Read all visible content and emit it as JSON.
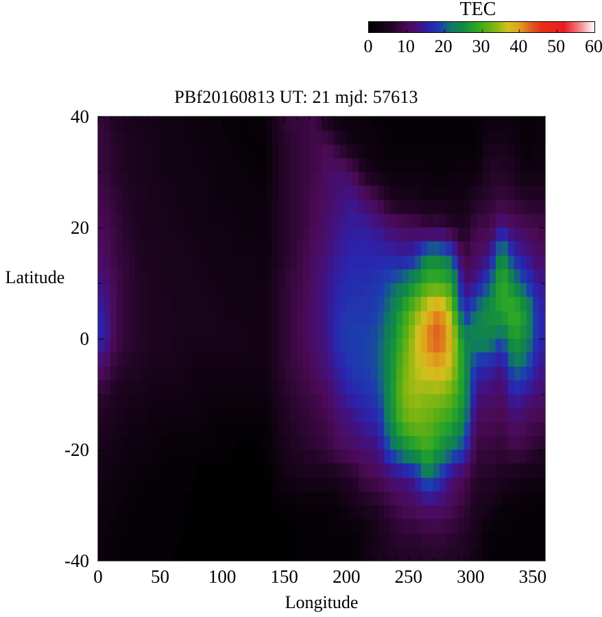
{
  "colorbar": {
    "title": "TEC",
    "min": 0,
    "max": 60,
    "tick_labels": [
      0,
      10,
      20,
      30,
      40,
      50,
      60
    ]
  },
  "plot": {
    "title": "PBf20160813  UT: 21  mjd: 57613",
    "x_axis": {
      "label": "Longitude",
      "tick_labels": [
        0,
        50,
        100,
        150,
        200,
        250,
        300,
        350
      ],
      "range": [
        0,
        360
      ],
      "major_step": 50,
      "minor_step": 10
    },
    "y_axis": {
      "label": "Latitude",
      "tick_labels": [
        40,
        20,
        0,
        -20,
        -40
      ],
      "range": [
        -40,
        40
      ],
      "major_step": 20,
      "minor_step": 10
    }
  },
  "chart_data": {
    "type": "heatmap",
    "title": "PBf20160813  UT: 21  mjd: 57613",
    "xlabel": "Longitude",
    "ylabel": "Latitude",
    "zlabel": "TEC",
    "xlim": [
      0,
      360
    ],
    "ylim": [
      -40,
      40
    ],
    "zlim": [
      0,
      60
    ],
    "grid": false,
    "colorbar_position": "top",
    "lon_centers": [
      5,
      15,
      25,
      35,
      45,
      55,
      65,
      75,
      85,
      95,
      105,
      115,
      125,
      135,
      145,
      155,
      165,
      175,
      185,
      195,
      205,
      215,
      225,
      235,
      245,
      255,
      265,
      275,
      285,
      295,
      305,
      315,
      325,
      335,
      345,
      355
    ],
    "lat_centers": [
      40,
      35,
      30,
      25,
      20,
      15,
      10,
      5,
      0,
      -5,
      -10,
      -15,
      -20,
      -25,
      -30,
      -35,
      -40
    ],
    "values": [
      [
        7,
        5,
        4,
        4,
        3,
        3,
        3,
        2,
        2,
        2,
        1,
        1,
        1,
        2,
        6,
        8,
        8,
        9,
        3,
        2,
        2,
        2,
        1,
        1,
        1,
        1,
        1,
        1,
        1,
        1,
        1,
        2,
        2,
        2,
        1,
        2
      ],
      [
        8,
        6,
        5,
        4,
        4,
        3,
        3,
        3,
        2,
        2,
        2,
        1,
        1,
        1,
        5,
        7,
        8,
        9,
        10,
        6,
        3,
        2,
        2,
        1,
        1,
        1,
        1,
        1,
        1,
        1,
        1,
        4,
        4,
        3,
        1,
        2
      ],
      [
        8,
        6,
        5,
        4,
        4,
        3,
        3,
        3,
        3,
        2,
        2,
        2,
        1,
        1,
        5,
        7,
        8,
        9,
        11,
        12,
        10,
        5,
        3,
        2,
        2,
        2,
        2,
        1,
        2,
        2,
        2,
        6,
        6,
        5,
        2,
        3
      ],
      [
        9,
        7,
        6,
        5,
        4,
        4,
        3,
        3,
        3,
        2,
        2,
        2,
        2,
        2,
        5,
        7,
        8,
        10,
        11,
        13,
        14,
        12,
        9,
        5,
        4,
        4,
        3,
        3,
        3,
        3,
        6,
        7,
        8,
        7,
        6,
        6
      ],
      [
        10,
        8,
        6,
        5,
        4,
        4,
        4,
        3,
        3,
        3,
        3,
        2,
        2,
        2,
        5,
        7,
        8,
        10,
        12,
        14,
        15,
        15,
        14,
        12,
        11,
        10,
        8,
        9,
        6,
        5,
        9,
        9,
        14,
        11,
        10,
        9
      ],
      [
        11,
        8,
        7,
        5,
        5,
        4,
        4,
        4,
        3,
        3,
        3,
        3,
        3,
        2,
        5,
        7,
        9,
        11,
        13,
        15,
        16,
        16,
        16,
        16,
        15,
        16,
        24,
        24,
        20,
        8,
        11,
        13,
        26,
        16,
        14,
        11
      ],
      [
        13,
        9,
        7,
        6,
        5,
        4,
        4,
        4,
        4,
        3,
        3,
        3,
        3,
        3,
        6,
        8,
        9,
        12,
        14,
        16,
        17,
        17,
        18,
        20,
        22,
        26,
        30,
        30,
        28,
        12,
        14,
        20,
        30,
        24,
        18,
        14
      ],
      [
        15,
        9,
        7,
        6,
        5,
        5,
        4,
        4,
        4,
        4,
        3,
        3,
        3,
        3,
        6,
        8,
        10,
        12,
        14,
        17,
        18,
        18,
        19,
        22,
        28,
        33,
        38,
        42,
        34,
        16,
        22,
        26,
        28,
        30,
        26,
        16
      ],
      [
        16,
        9,
        7,
        6,
        5,
        5,
        4,
        4,
        4,
        4,
        4,
        4,
        3,
        3,
        6,
        8,
        10,
        12,
        14,
        18,
        19,
        19,
        20,
        24,
        30,
        36,
        42,
        44,
        38,
        24,
        24,
        24,
        20,
        28,
        24,
        16
      ],
      [
        11,
        7,
        6,
        5,
        4,
        4,
        4,
        3,
        3,
        3,
        3,
        3,
        3,
        3,
        6,
        8,
        9,
        11,
        13,
        16,
        18,
        19,
        20,
        25,
        32,
        36,
        38,
        40,
        36,
        26,
        17,
        16,
        13,
        22,
        20,
        14
      ],
      [
        7,
        5,
        4,
        4,
        3,
        3,
        3,
        3,
        2,
        2,
        2,
        2,
        2,
        2,
        5,
        7,
        8,
        9,
        11,
        14,
        16,
        17,
        19,
        25,
        33,
        35,
        34,
        34,
        32,
        26,
        13,
        12,
        11,
        16,
        14,
        12
      ],
      [
        5,
        4,
        3,
        3,
        2,
        2,
        2,
        2,
        2,
        1,
        1,
        1,
        1,
        1,
        4,
        6,
        7,
        8,
        9,
        12,
        13,
        15,
        16,
        24,
        31,
        33,
        32,
        30,
        28,
        24,
        10,
        10,
        9,
        12,
        10,
        9
      ],
      [
        4,
        3,
        2,
        2,
        2,
        1,
        1,
        1,
        1,
        1,
        1,
        0,
        0,
        1,
        3,
        5,
        6,
        7,
        8,
        10,
        11,
        12,
        13,
        20,
        24,
        27,
        30,
        26,
        22,
        18,
        8,
        8,
        7,
        9,
        8,
        6
      ],
      [
        3,
        2,
        2,
        1,
        1,
        1,
        1,
        1,
        0,
        0,
        0,
        0,
        0,
        0,
        2,
        3,
        4,
        4,
        4,
        5,
        6,
        9,
        10,
        12,
        13,
        15,
        22,
        18,
        12,
        10,
        6,
        6,
        5,
        4,
        3,
        3
      ],
      [
        2,
        2,
        1,
        1,
        1,
        1,
        1,
        0,
        0,
        0,
        0,
        0,
        0,
        0,
        1,
        1,
        1,
        1,
        1,
        2,
        4,
        5,
        6,
        8,
        10,
        11,
        12,
        12,
        10,
        8,
        5,
        4,
        2,
        1,
        1,
        1
      ],
      [
        2,
        1,
        1,
        1,
        1,
        1,
        1,
        0,
        0,
        0,
        0,
        0,
        0,
        0,
        0,
        0,
        1,
        1,
        1,
        1,
        1,
        2,
        4,
        6,
        7,
        7,
        8,
        8,
        7,
        6,
        4,
        1,
        1,
        1,
        1,
        1
      ],
      [
        2,
        1,
        1,
        1,
        1,
        1,
        0,
        0,
        0,
        0,
        0,
        0,
        0,
        0,
        0,
        0,
        1,
        1,
        1,
        1,
        1,
        3,
        4,
        5,
        6,
        6,
        6,
        6,
        6,
        5,
        3,
        1,
        1,
        1,
        1,
        1
      ]
    ],
    "colormap_stops": [
      [
        0,
        "#000000"
      ],
      [
        6,
        "#230527"
      ],
      [
        10,
        "#4b0a55"
      ],
      [
        13,
        "#44107c"
      ],
      [
        16,
        "#2a24ae"
      ],
      [
        19,
        "#1c3fae"
      ],
      [
        22,
        "#107a62"
      ],
      [
        25,
        "#128a42"
      ],
      [
        28,
        "#25a32b"
      ],
      [
        31,
        "#55ad17"
      ],
      [
        34,
        "#8cb711"
      ],
      [
        37,
        "#d2c11e"
      ],
      [
        40,
        "#e0a21b"
      ],
      [
        43,
        "#e06020"
      ],
      [
        46,
        "#e62e16"
      ],
      [
        52,
        "#ea1d22"
      ],
      [
        56,
        "#f37f84"
      ],
      [
        60,
        "#ffffff"
      ]
    ]
  }
}
